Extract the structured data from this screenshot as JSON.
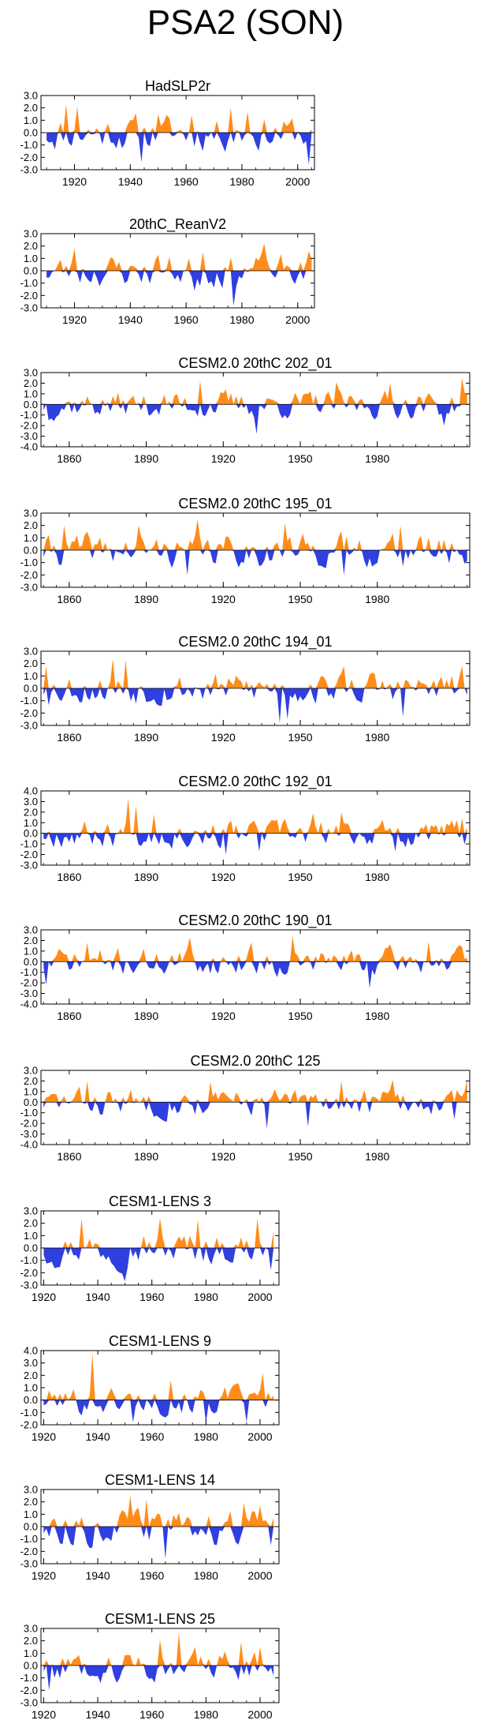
{
  "figure_title": "PSA2 (SON)",
  "colors": {
    "positive": "#ff8c1a",
    "negative": "#2f3fe0",
    "axis": "#000000"
  },
  "chart_data": [
    {
      "type": "area",
      "title": "HadSLP2r",
      "xlim": [
        1908,
        2006
      ],
      "ylim": [
        -3.0,
        3.0
      ],
      "yticks": [
        "3.0",
        "2.0",
        "1.0",
        "0.0",
        "-1.0",
        "-2.0",
        "-3.0"
      ],
      "xticks": [
        "1920",
        "1940",
        "1960",
        "1980",
        "2000"
      ],
      "xtick_values": [
        1920,
        1940,
        1960,
        1980,
        2000
      ],
      "start": 1910,
      "end": 2005,
      "seed": 11,
      "amp": 1.0,
      "peaks": [
        [
          1917,
          2.3
        ],
        [
          1921,
          2.1
        ],
        [
          1944,
          -2.4
        ],
        [
          1950,
          1.5
        ],
        [
          1962,
          1.4
        ],
        [
          1976,
          2.0
        ],
        [
          1982,
          1.7
        ],
        [
          2004,
          -2.6
        ]
      ]
    },
    {
      "type": "area",
      "title": "20thC_ReanV2",
      "xlim": [
        1908,
        2006
      ],
      "ylim": [
        -3.0,
        3.0
      ],
      "yticks": [
        "3.0",
        "2.0",
        "1.0",
        "0.0",
        "-1.0",
        "-2.0",
        "-3.0"
      ],
      "xticks": [
        "1920",
        "1940",
        "1960",
        "1980",
        "2000"
      ],
      "xtick_values": [
        1920,
        1940,
        1960,
        1980,
        2000
      ],
      "start": 1910,
      "end": 2005,
      "seed": 23,
      "amp": 0.9,
      "peaks": [
        [
          1920,
          1.8
        ],
        [
          1950,
          1.3
        ],
        [
          1963,
          -1.6
        ],
        [
          1966,
          1.5
        ],
        [
          1977,
          -3.0
        ],
        [
          1988,
          2.2
        ],
        [
          2004,
          1.6
        ]
      ]
    },
    {
      "type": "area",
      "title": "CESM2.0 20thC 202_01",
      "xlim": [
        1849,
        2016
      ],
      "ylim": [
        -4.0,
        3.0
      ],
      "yticks": [
        "3.0",
        "2.0",
        "1.0",
        "0.0",
        "-1.0",
        "-2.0",
        "-3.0",
        "-4.0"
      ],
      "xticks": [
        "1860",
        "1890",
        "1920",
        "1950",
        "1980"
      ],
      "xtick_values": [
        1860,
        1890,
        1920,
        1950,
        1980
      ],
      "start": 1850,
      "end": 2015,
      "seed": 37,
      "amp": 0.9,
      "peaks": [
        [
          1852,
          -1.5
        ],
        [
          1911,
          2.2
        ],
        [
          1933,
          -2.8
        ],
        [
          1964,
          2.1
        ],
        [
          1985,
          2.0
        ],
        [
          2006,
          -2.0
        ],
        [
          2013,
          2.5
        ]
      ]
    },
    {
      "type": "area",
      "title": "CESM2.0 20thC 195_01",
      "xlim": [
        1849,
        2016
      ],
      "ylim": [
        -3.0,
        3.0
      ],
      "yticks": [
        "3.0",
        "2.0",
        "1.0",
        "0.0",
        "-1.0",
        "-2.0",
        "-3.0"
      ],
      "xticks": [
        "1860",
        "1890",
        "1920",
        "1950",
        "1980"
      ],
      "xtick_values": [
        1860,
        1890,
        1920,
        1950,
        1980
      ],
      "start": 1850,
      "end": 2015,
      "seed": 41,
      "amp": 0.9,
      "peaks": [
        [
          1858,
          2.0
        ],
        [
          1887,
          2.0
        ],
        [
          1906,
          -2.0
        ],
        [
          1910,
          2.5
        ],
        [
          1944,
          2.2
        ],
        [
          1967,
          -2.0
        ],
        [
          1989,
          2.0
        ]
      ]
    },
    {
      "type": "area",
      "title": "CESM2.0 20thC 194_01",
      "xlim": [
        1849,
        2016
      ],
      "ylim": [
        -3.0,
        3.0
      ],
      "yticks": [
        "3.0",
        "2.0",
        "1.0",
        "0.0",
        "-1.0",
        "-2.0",
        "-3.0"
      ],
      "xticks": [
        "1860",
        "1890",
        "1920",
        "1950",
        "1980"
      ],
      "xtick_values": [
        1860,
        1890,
        1920,
        1950,
        1980
      ],
      "start": 1850,
      "end": 2015,
      "seed": 53,
      "amp": 0.9,
      "peaks": [
        [
          1851,
          1.8
        ],
        [
          1877,
          2.4
        ],
        [
          1882,
          2.3
        ],
        [
          1942,
          -2.8
        ],
        [
          1945,
          -2.5
        ],
        [
          1967,
          1.8
        ],
        [
          1990,
          -2.3
        ],
        [
          2013,
          1.8
        ]
      ]
    },
    {
      "type": "area",
      "title": "CESM2.0 20thC 192_01",
      "xlim": [
        1849,
        2016
      ],
      "ylim": [
        -3.0,
        4.0
      ],
      "yticks": [
        "4.0",
        "3.0",
        "2.0",
        "1.0",
        "0.0",
        "-1.0",
        "-2.0",
        "-3.0"
      ],
      "xticks": [
        "1860",
        "1890",
        "1920",
        "1950",
        "1980"
      ],
      "xtick_values": [
        1860,
        1890,
        1920,
        1950,
        1980
      ],
      "start": 1850,
      "end": 2015,
      "seed": 67,
      "amp": 0.9,
      "peaks": [
        [
          1883,
          3.3
        ],
        [
          1886,
          2.6
        ],
        [
          1893,
          1.8
        ],
        [
          1921,
          -2.0
        ],
        [
          1934,
          -1.7
        ],
        [
          1955,
          1.9
        ],
        [
          1966,
          2.0
        ],
        [
          1987,
          -1.7
        ],
        [
          2013,
          1.4
        ]
      ]
    },
    {
      "type": "area",
      "title": "CESM2.0 20thC 190_01",
      "xlim": [
        1849,
        2016
      ],
      "ylim": [
        -4.0,
        3.0
      ],
      "yticks": [
        "3.0",
        "2.0",
        "1.0",
        "0.0",
        "-1.0",
        "-2.0",
        "-3.0",
        "-4.0"
      ],
      "xticks": [
        "1860",
        "1890",
        "1920",
        "1950",
        "1980"
      ],
      "xtick_values": [
        1860,
        1890,
        1920,
        1950,
        1980
      ],
      "start": 1850,
      "end": 2015,
      "seed": 71,
      "amp": 0.9,
      "peaks": [
        [
          1851,
          -2.2
        ],
        [
          1867,
          1.8
        ],
        [
          1907,
          2.3
        ],
        [
          1931,
          1.8
        ],
        [
          1947,
          2.4
        ],
        [
          1977,
          -2.5
        ],
        [
          2000,
          1.9
        ]
      ]
    },
    {
      "type": "area",
      "title": "CESM2.0 20thC 125",
      "xlim": [
        1849,
        2016
      ],
      "ylim": [
        -4.0,
        3.0
      ],
      "yticks": [
        "3.0",
        "2.0",
        "1.0",
        "0.0",
        "-1.0",
        "-2.0",
        "-3.0",
        "-4.0"
      ],
      "xticks": [
        "1860",
        "1890",
        "1920",
        "1950",
        "1980"
      ],
      "xtick_values": [
        1860,
        1890,
        1920,
        1950,
        1980
      ],
      "start": 1850,
      "end": 2015,
      "seed": 83,
      "amp": 0.9,
      "peaks": [
        [
          1867,
          2.0
        ],
        [
          1915,
          1.9
        ],
        [
          1937,
          -2.5
        ],
        [
          1953,
          -2.3
        ],
        [
          1966,
          2.0
        ],
        [
          1986,
          2.1
        ],
        [
          2010,
          -1.6
        ],
        [
          2015,
          2.2
        ]
      ]
    },
    {
      "type": "area",
      "title": "CESM1-LENS 3",
      "xlim": [
        1919,
        2007
      ],
      "ylim": [
        -3.0,
        3.0
      ],
      "yticks": [
        "3.0",
        "2.0",
        "1.0",
        "0.0",
        "-1.0",
        "-2.0",
        "-3.0"
      ],
      "xticks": [
        "1920",
        "1940",
        "1960",
        "1980",
        "2000"
      ],
      "xtick_values": [
        1920,
        1940,
        1960,
        1980,
        2000
      ],
      "start": 1920,
      "end": 2005,
      "seed": 97,
      "amp": 1.0,
      "peaks": [
        [
          1934,
          2.4
        ],
        [
          1950,
          -2.7
        ],
        [
          1963,
          2.4
        ],
        [
          1977,
          2.3
        ],
        [
          1999,
          2.4
        ],
        [
          2004,
          -1.8
        ]
      ]
    },
    {
      "type": "area",
      "title": "CESM1-LENS 9",
      "xlim": [
        1919,
        2007
      ],
      "ylim": [
        -2.0,
        4.0
      ],
      "yticks": [
        "4.0",
        "3.0",
        "2.0",
        "1.0",
        "0.0",
        "-1.0",
        "-2.0"
      ],
      "xticks": [
        "1920",
        "1940",
        "1960",
        "1980",
        "2000"
      ],
      "xtick_values": [
        1920,
        1940,
        1960,
        1980,
        2000
      ],
      "start": 1920,
      "end": 2005,
      "seed": 101,
      "amp": 0.8,
      "peaks": [
        [
          1938,
          3.8
        ],
        [
          1953,
          -1.8
        ],
        [
          1967,
          1.6
        ],
        [
          1980,
          -1.9
        ],
        [
          1995,
          -1.8
        ],
        [
          2001,
          2.2
        ]
      ]
    },
    {
      "type": "area",
      "title": "CESM1-LENS 14",
      "xlim": [
        1919,
        2007
      ],
      "ylim": [
        -3.0,
        3.0
      ],
      "yticks": [
        "3.0",
        "2.0",
        "1.0",
        "0.0",
        "-1.0",
        "-2.0",
        "-3.0"
      ],
      "xticks": [
        "1920",
        "1940",
        "1960",
        "1980",
        "2000"
      ],
      "xtick_values": [
        1920,
        1940,
        1960,
        1980,
        2000
      ],
      "start": 1920,
      "end": 2005,
      "seed": 113,
      "amp": 1.0,
      "peaks": [
        [
          1952,
          2.5
        ],
        [
          1958,
          2.2
        ],
        [
          1965,
          -2.6
        ],
        [
          1994,
          1.9
        ],
        [
          2000,
          1.7
        ],
        [
          2004,
          -1.5
        ]
      ]
    },
    {
      "type": "area",
      "title": "CESM1-LENS 25",
      "xlim": [
        1919,
        2007
      ],
      "ylim": [
        -3.0,
        3.0
      ],
      "yticks": [
        "3.0",
        "2.0",
        "1.0",
        "0.0",
        "-1.0",
        "-2.0",
        "-3.0"
      ],
      "xticks": [
        "1920",
        "1940",
        "1960",
        "1980",
        "2000"
      ],
      "xtick_values": [
        1920,
        1940,
        1960,
        1980,
        2000
      ],
      "start": 1920,
      "end": 2005,
      "seed": 127,
      "amp": 0.9,
      "peaks": [
        [
          1922,
          -2.0
        ],
        [
          1963,
          2.1
        ],
        [
          1970,
          2.7
        ],
        [
          1993,
          1.9
        ],
        [
          2000,
          1.5
        ]
      ]
    }
  ]
}
